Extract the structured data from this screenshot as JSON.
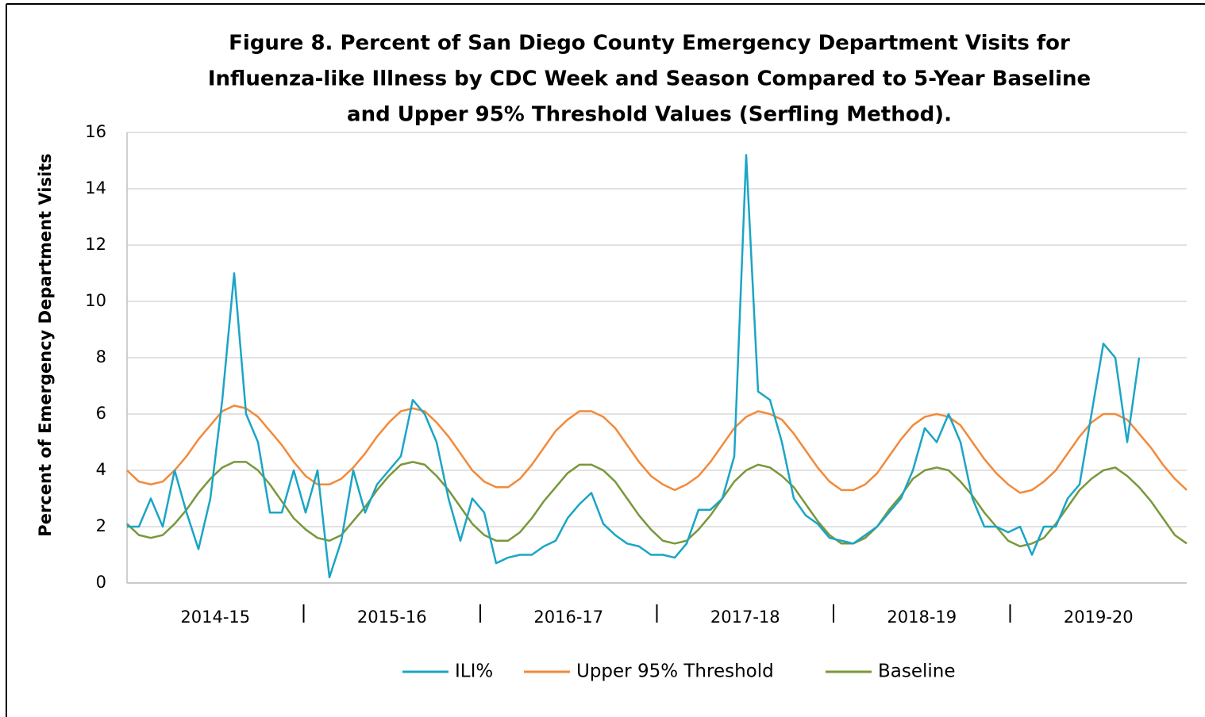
{
  "chart_data": {
    "type": "line",
    "title": [
      "Figure 8. Percent of San Diego County Emergency Department Visits for",
      "Influenza-like Illness by CDC Week and Season Compared to 5-Year Baseline",
      "and Upper 95% Threshold Values (Serfling Method)."
    ],
    "y_label": "Percent of Emergency Department Visits",
    "season_labels": [
      "2014-15",
      "2015-16",
      "2016-17",
      "2017-18",
      "2018-19",
      "2019-20"
    ],
    "ylim": [
      0,
      16
    ],
    "yticks": [
      0,
      2,
      4,
      6,
      8,
      10,
      12,
      14,
      16
    ],
    "grid": true,
    "legend": "bottom",
    "series": [
      {
        "name": "ILI%",
        "color": "#1ba5c6",
        "values": [
          2,
          2,
          3,
          2,
          4,
          2.5,
          1.2,
          3,
          6.5,
          11,
          6,
          5,
          2.5,
          2.5,
          4,
          2.5,
          4,
          0.2,
          1.5,
          4,
          2.5,
          3.5,
          4,
          4.5,
          6.5,
          6,
          5,
          3,
          1.5,
          3,
          2.5,
          0.7,
          0.9,
          1.0,
          1.0,
          1.3,
          1.5,
          2.3,
          2.8,
          3.2,
          2.1,
          1.7,
          1.4,
          1.3,
          1.0,
          1.0,
          0.9,
          1.4,
          2.6,
          2.6,
          3.0,
          4.5,
          15.2,
          6.8,
          6.5,
          5.0,
          3.0,
          2.4,
          2.1,
          1.6,
          1.5,
          1.4,
          1.7,
          2.0,
          2.5,
          3.0,
          4.0,
          5.5,
          5.0,
          6.0,
          5.0,
          3.0,
          2.0,
          2.0,
          1.8,
          2.0,
          1.0,
          2.0,
          2.0,
          3.0,
          3.5,
          6.0,
          8.5,
          8.0,
          5.0,
          8.0,
          null,
          null,
          null,
          null
        ]
      },
      {
        "name": "Upper 95% Threshold",
        "color": "#f28a3a",
        "values": [
          4.0,
          3.6,
          3.5,
          3.6,
          4.0,
          4.5,
          5.1,
          5.6,
          6.1,
          6.3,
          6.2,
          5.9,
          5.4,
          4.9,
          4.3,
          3.8,
          3.5,
          3.5,
          3.7,
          4.1,
          4.6,
          5.2,
          5.7,
          6.1,
          6.2,
          6.1,
          5.7,
          5.2,
          4.6,
          4.0,
          3.6,
          3.4,
          3.4,
          3.7,
          4.2,
          4.8,
          5.4,
          5.8,
          6.1,
          6.1,
          5.9,
          5.5,
          4.9,
          4.3,
          3.8,
          3.5,
          3.3,
          3.5,
          3.8,
          4.3,
          4.9,
          5.5,
          5.9,
          6.1,
          6.0,
          5.8,
          5.3,
          4.7,
          4.1,
          3.6,
          3.3,
          3.3,
          3.5,
          3.9,
          4.5,
          5.1,
          5.6,
          5.9,
          6.0,
          5.9,
          5.6,
          5.0,
          4.4,
          3.9,
          3.5,
          3.2,
          3.3,
          3.6,
          4.0,
          4.6,
          5.2,
          5.7,
          6.0,
          6.0,
          5.8,
          5.3,
          4.8,
          4.2,
          3.7,
          3.3
        ]
      },
      {
        "name": "Baseline",
        "color": "#78983a",
        "values": [
          2.1,
          1.7,
          1.6,
          1.7,
          2.1,
          2.6,
          3.2,
          3.7,
          4.1,
          4.3,
          4.3,
          4.0,
          3.5,
          2.9,
          2.3,
          1.9,
          1.6,
          1.5,
          1.7,
          2.2,
          2.7,
          3.3,
          3.8,
          4.2,
          4.3,
          4.2,
          3.8,
          3.3,
          2.7,
          2.1,
          1.7,
          1.5,
          1.5,
          1.8,
          2.3,
          2.9,
          3.4,
          3.9,
          4.2,
          4.2,
          4.0,
          3.6,
          3.0,
          2.4,
          1.9,
          1.5,
          1.4,
          1.5,
          1.9,
          2.4,
          3.0,
          3.6,
          4.0,
          4.2,
          4.1,
          3.8,
          3.4,
          2.8,
          2.2,
          1.7,
          1.4,
          1.4,
          1.6,
          2.0,
          2.6,
          3.1,
          3.7,
          4.0,
          4.1,
          4.0,
          3.6,
          3.1,
          2.5,
          2.0,
          1.5,
          1.3,
          1.4,
          1.6,
          2.1,
          2.7,
          3.3,
          3.7,
          4.0,
          4.1,
          3.8,
          3.4,
          2.9,
          2.3,
          1.7,
          1.4
        ]
      }
    ]
  }
}
